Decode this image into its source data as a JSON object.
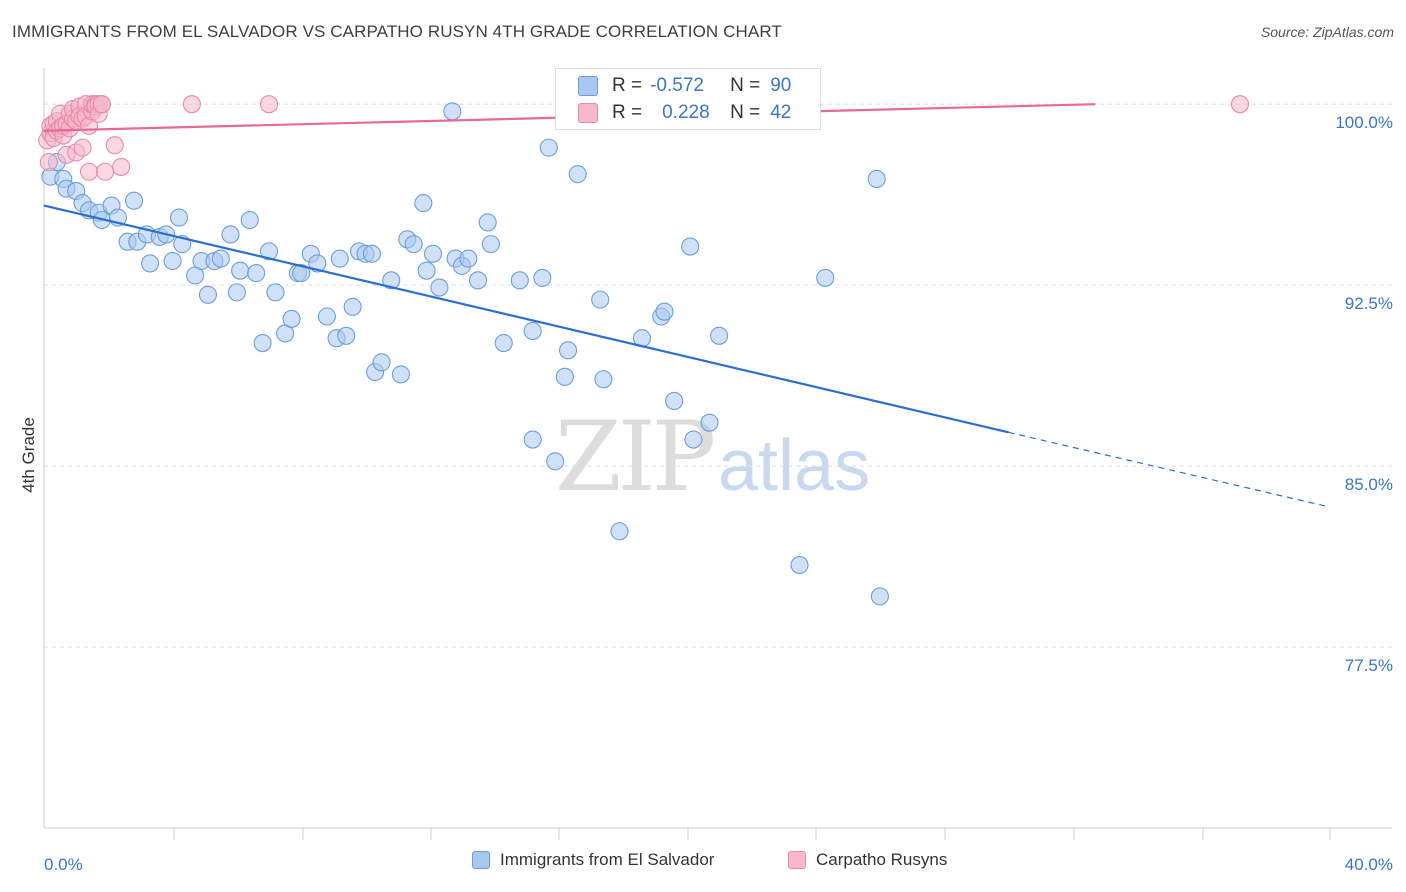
{
  "title": "IMMIGRANTS FROM EL SALVADOR VS CARPATHO RUSYN 4TH GRADE CORRELATION CHART",
  "source": "Source: ZipAtlas.com",
  "watermark": {
    "zip": "ZIP",
    "atlas": "atlas"
  },
  "colors": {
    "blue_fill": "#a9c8f0",
    "blue_stroke": "#6b9fd9",
    "blue_line": "#2a6fcf",
    "pink_fill": "#f6b8cb",
    "pink_stroke": "#e88aa8",
    "pink_line": "#e86a91",
    "axis_label": "#3a76c7",
    "grid": "#dddddd"
  },
  "stats": {
    "blue": {
      "r_label": "R =",
      "r_value": "-0.572",
      "n_label": "N =",
      "n_value": "90"
    },
    "pink": {
      "r_label": "R =",
      "r_value": "0.228",
      "n_label": "N =",
      "n_value": "42"
    }
  },
  "chart_data": {
    "type": "scatter",
    "title": "IMMIGRANTS FROM EL SALVADOR VS CARPATHO RUSYN 4TH GRADE CORRELATION CHART",
    "xlabel": "",
    "ylabel": "4th Grade",
    "xlim": [
      0,
      40
    ],
    "ylim": [
      70,
      101.5
    ],
    "x_tick_labels": [
      "0.0%",
      "40.0%"
    ],
    "y_ticks": [
      77.5,
      85.0,
      92.5,
      100.0
    ],
    "y_tick_labels": [
      "77.5%",
      "85.0%",
      "92.5%",
      "100.0%"
    ],
    "grid": "horizontal dashed",
    "legend_placement": "bottom-center",
    "series": [
      {
        "name": "Immigrants from El Salvador",
        "color": "#a9c8f0",
        "trend": {
          "x": [
            0,
            30
          ],
          "y": [
            95.8,
            86.4
          ],
          "dashed_to": [
            40,
            83.3
          ]
        },
        "points": [
          [
            0.2,
            97.0
          ],
          [
            0.4,
            97.6
          ],
          [
            0.6,
            96.9
          ],
          [
            0.7,
            96.5
          ],
          [
            1.0,
            96.4
          ],
          [
            1.2,
            95.9
          ],
          [
            1.4,
            95.6
          ],
          [
            1.7,
            95.5
          ],
          [
            1.8,
            95.2
          ],
          [
            2.1,
            95.8
          ],
          [
            2.3,
            95.3
          ],
          [
            2.6,
            94.3
          ],
          [
            2.8,
            96.0
          ],
          [
            2.9,
            94.3
          ],
          [
            3.2,
            94.6
          ],
          [
            3.3,
            93.4
          ],
          [
            3.6,
            94.5
          ],
          [
            3.8,
            94.6
          ],
          [
            4.0,
            93.5
          ],
          [
            4.2,
            95.3
          ],
          [
            4.3,
            94.2
          ],
          [
            4.7,
            92.9
          ],
          [
            4.9,
            93.5
          ],
          [
            5.1,
            92.1
          ],
          [
            5.3,
            93.5
          ],
          [
            5.5,
            93.6
          ],
          [
            5.8,
            94.6
          ],
          [
            6.0,
            92.2
          ],
          [
            6.1,
            93.1
          ],
          [
            6.4,
            95.2
          ],
          [
            6.6,
            93.0
          ],
          [
            6.8,
            90.1
          ],
          [
            7.0,
            93.9
          ],
          [
            7.2,
            92.2
          ],
          [
            7.5,
            90.5
          ],
          [
            7.7,
            91.1
          ],
          [
            7.9,
            93.0
          ],
          [
            8.0,
            93.0
          ],
          [
            8.3,
            93.8
          ],
          [
            8.5,
            93.4
          ],
          [
            8.8,
            91.2
          ],
          [
            9.1,
            90.3
          ],
          [
            9.2,
            93.6
          ],
          [
            9.4,
            90.4
          ],
          [
            9.6,
            91.6
          ],
          [
            9.8,
            93.9
          ],
          [
            10.0,
            93.8
          ],
          [
            10.2,
            93.8
          ],
          [
            10.3,
            88.9
          ],
          [
            10.5,
            89.3
          ],
          [
            10.8,
            92.7
          ],
          [
            11.1,
            88.8
          ],
          [
            11.3,
            94.4
          ],
          [
            11.5,
            94.2
          ],
          [
            11.8,
            95.9
          ],
          [
            11.9,
            93.1
          ],
          [
            12.1,
            93.8
          ],
          [
            12.3,
            92.4
          ],
          [
            12.7,
            99.7
          ],
          [
            12.8,
            93.6
          ],
          [
            13.0,
            93.3
          ],
          [
            13.2,
            93.6
          ],
          [
            13.5,
            92.7
          ],
          [
            13.8,
            95.1
          ],
          [
            13.9,
            94.2
          ],
          [
            14.3,
            90.1
          ],
          [
            14.8,
            92.7
          ],
          [
            15.2,
            86.1
          ],
          [
            15.2,
            90.6
          ],
          [
            15.5,
            92.8
          ],
          [
            15.7,
            98.2
          ],
          [
            15.9,
            85.2
          ],
          [
            16.2,
            88.7
          ],
          [
            16.3,
            89.8
          ],
          [
            16.6,
            97.1
          ],
          [
            17.3,
            91.9
          ],
          [
            17.4,
            88.6
          ],
          [
            17.9,
            82.3
          ],
          [
            18.6,
            90.3
          ],
          [
            19.2,
            91.2
          ],
          [
            19.3,
            91.4
          ],
          [
            19.6,
            87.7
          ],
          [
            20.1,
            94.1
          ],
          [
            20.2,
            86.1
          ],
          [
            20.7,
            86.8
          ],
          [
            21.0,
            90.4
          ],
          [
            23.5,
            80.9
          ],
          [
            24.3,
            92.8
          ],
          [
            25.9,
            96.9
          ],
          [
            26.0,
            79.6
          ]
        ]
      },
      {
        "name": "Carpatho Rusyns",
        "color": "#f6b8cb",
        "trend": {
          "x": [
            0,
            32.7
          ],
          "y": [
            98.9,
            100.0
          ]
        },
        "points": [
          [
            0.1,
            98.5
          ],
          [
            0.2,
            98.8
          ],
          [
            0.2,
            99.1
          ],
          [
            0.3,
            98.6
          ],
          [
            0.3,
            99.2
          ],
          [
            0.4,
            99.3
          ],
          [
            0.4,
            98.9
          ],
          [
            0.5,
            99.0
          ],
          [
            0.5,
            99.6
          ],
          [
            0.6,
            98.7
          ],
          [
            0.6,
            99.1
          ],
          [
            0.7,
            99.2
          ],
          [
            0.7,
            97.9
          ],
          [
            0.8,
            99.0
          ],
          [
            0.8,
            99.6
          ],
          [
            0.9,
            99.4
          ],
          [
            0.9,
            99.8
          ],
          [
            1.0,
            99.3
          ],
          [
            1.0,
            98.0
          ],
          [
            1.1,
            99.9
          ],
          [
            1.1,
            99.5
          ],
          [
            1.2,
            99.4
          ],
          [
            1.2,
            98.2
          ],
          [
            1.3,
            100.0
          ],
          [
            1.3,
            99.5
          ],
          [
            1.4,
            97.2
          ],
          [
            1.4,
            99.1
          ],
          [
            1.5,
            99.7
          ],
          [
            1.5,
            100.0
          ],
          [
            1.6,
            100.0
          ],
          [
            1.6,
            99.9
          ],
          [
            1.7,
            100.0
          ],
          [
            1.7,
            99.6
          ],
          [
            1.8,
            100.0
          ],
          [
            1.8,
            100.0
          ],
          [
            1.9,
            97.2
          ],
          [
            2.2,
            98.3
          ],
          [
            2.4,
            97.4
          ],
          [
            4.6,
            100.0
          ],
          [
            7.0,
            100.0
          ],
          [
            37.2,
            100.0
          ],
          [
            0.15,
            97.6
          ]
        ]
      }
    ]
  },
  "legend": [
    {
      "label": "Immigrants from El Salvador"
    },
    {
      "label": "Carpatho Rusyns"
    }
  ]
}
